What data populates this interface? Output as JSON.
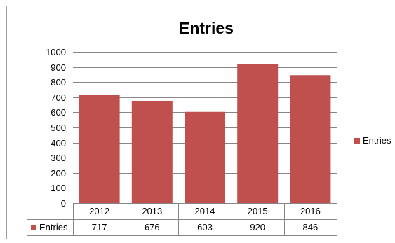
{
  "chart_data": {
    "type": "bar",
    "title": "Entries",
    "categories": [
      "2012",
      "2013",
      "2014",
      "2015",
      "2016"
    ],
    "series": [
      {
        "name": "Entries",
        "values": [
          717,
          676,
          603,
          920,
          846
        ],
        "color": "#c0504d"
      }
    ],
    "ylim": [
      0,
      1000
    ],
    "y_ticks": [
      0,
      100,
      200,
      300,
      400,
      500,
      600,
      700,
      800,
      900,
      1000
    ],
    "grid": true,
    "legend_position": "right",
    "data_table": true
  }
}
